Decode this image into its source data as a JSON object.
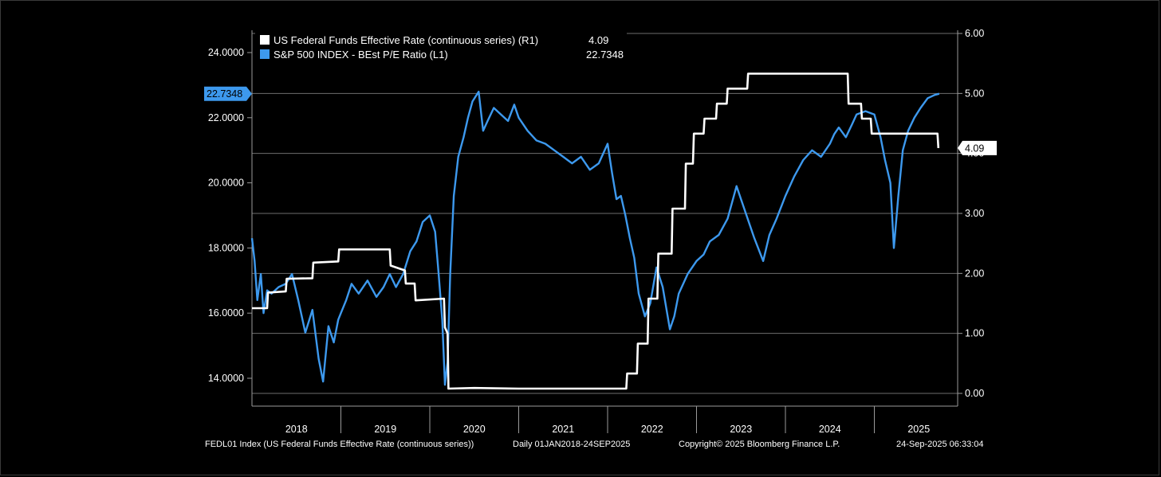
{
  "chart_data": {
    "type": "line",
    "x_range": [
      "2018-01-01",
      "2025-09-24"
    ],
    "x_ticks": [
      "2018",
      "2019",
      "2020",
      "2021",
      "2022",
      "2023",
      "2024",
      "2025"
    ],
    "left_axis": {
      "ticks": [
        "14.0000",
        "16.0000",
        "18.0000",
        "20.0000",
        "22.0000",
        "24.0000"
      ],
      "ylim": [
        13.5,
        25.0
      ]
    },
    "right_axis": {
      "ticks": [
        "0.00",
        "1.00",
        "2.00",
        "3.00",
        "4.00",
        "5.00",
        "6.00"
      ],
      "ylim": [
        0,
        6
      ]
    },
    "grid": true,
    "legend_position": "top-left",
    "series": [
      {
        "name": "US Federal Funds Effective Rate (continuous series)  (R1)",
        "last_label": "4.09",
        "axis": "right",
        "color": "#ffffff",
        "x": [
          2018.0,
          2018.17,
          2018.18,
          2018.38,
          2018.39,
          2018.68,
          2018.69,
          2018.97,
          2018.98,
          2019.55,
          2019.56,
          2019.72,
          2019.73,
          2019.83,
          2019.84,
          2020.16,
          2020.17,
          2020.2,
          2020.21,
          2020.5,
          2021.0,
          2021.5,
          2022.0,
          2022.21,
          2022.22,
          2022.33,
          2022.34,
          2022.45,
          2022.46,
          2022.56,
          2022.57,
          2022.72,
          2022.73,
          2022.87,
          2022.88,
          2022.96,
          2022.97,
          2023.08,
          2023.09,
          2023.22,
          2023.23,
          2023.34,
          2023.35,
          2023.57,
          2023.58,
          2024.0,
          2024.7,
          2024.71,
          2024.85,
          2024.86,
          2024.96,
          2024.97,
          2025.5,
          2025.71,
          2025.72
        ],
        "values": [
          1.42,
          1.42,
          1.68,
          1.7,
          1.91,
          1.92,
          2.18,
          2.2,
          2.4,
          2.4,
          2.13,
          2.05,
          1.83,
          1.83,
          1.55,
          1.58,
          1.1,
          1.0,
          0.08,
          0.09,
          0.08,
          0.08,
          0.08,
          0.08,
          0.33,
          0.33,
          0.83,
          0.83,
          1.58,
          1.58,
          2.33,
          2.33,
          3.08,
          3.08,
          3.83,
          3.83,
          4.33,
          4.33,
          4.58,
          4.58,
          4.83,
          4.83,
          5.08,
          5.08,
          5.33,
          5.33,
          5.33,
          4.83,
          4.83,
          4.58,
          4.58,
          4.33,
          4.33,
          4.33,
          4.09
        ]
      },
      {
        "name": "S&P 500 INDEX - BEst P/E Ratio (L1)",
        "last_label": "22.7348",
        "axis": "left",
        "color": "#3d99ee",
        "x": [
          2018.0,
          2018.03,
          2018.06,
          2018.1,
          2018.13,
          2018.17,
          2018.22,
          2018.3,
          2018.38,
          2018.45,
          2018.52,
          2018.6,
          2018.68,
          2018.75,
          2018.8,
          2018.86,
          2018.92,
          2018.97,
          2019.0,
          2019.06,
          2019.12,
          2019.2,
          2019.3,
          2019.4,
          2019.48,
          2019.55,
          2019.62,
          2019.7,
          2019.78,
          2019.85,
          2019.92,
          2020.0,
          2020.06,
          2020.1,
          2020.14,
          2020.17,
          2020.2,
          2020.23,
          2020.27,
          2020.32,
          2020.38,
          2020.43,
          2020.48,
          2020.55,
          2020.6,
          2020.65,
          2020.72,
          2020.8,
          2020.88,
          2020.95,
          2021.0,
          2021.1,
          2021.2,
          2021.3,
          2021.4,
          2021.5,
          2021.6,
          2021.7,
          2021.8,
          2021.9,
          2022.0,
          2022.05,
          2022.1,
          2022.15,
          2022.2,
          2022.25,
          2022.3,
          2022.35,
          2022.42,
          2022.48,
          2022.55,
          2022.62,
          2022.7,
          2022.75,
          2022.8,
          2022.9,
          2023.0,
          2023.08,
          2023.15,
          2023.25,
          2023.35,
          2023.45,
          2023.55,
          2023.65,
          2023.75,
          2023.82,
          2023.9,
          2024.0,
          2024.1,
          2024.2,
          2024.3,
          2024.4,
          2024.5,
          2024.55,
          2024.6,
          2024.68,
          2024.75,
          2024.8,
          2024.9,
          2025.0,
          2025.07,
          2025.12,
          2025.18,
          2025.22,
          2025.27,
          2025.32,
          2025.38,
          2025.45,
          2025.52,
          2025.6,
          2025.68,
          2025.73
        ],
        "values": [
          18.3,
          17.6,
          16.4,
          17.2,
          16.0,
          16.7,
          16.6,
          16.8,
          16.9,
          17.2,
          16.4,
          15.4,
          16.1,
          14.6,
          13.9,
          15.6,
          15.1,
          15.8,
          16.0,
          16.4,
          16.9,
          16.6,
          17.0,
          16.5,
          16.8,
          17.2,
          16.8,
          17.2,
          17.9,
          18.2,
          18.8,
          19.0,
          18.5,
          17.2,
          15.8,
          13.8,
          14.5,
          17.2,
          19.6,
          20.8,
          21.4,
          22.0,
          22.5,
          22.8,
          21.6,
          21.9,
          22.3,
          22.1,
          21.9,
          22.4,
          22.0,
          21.6,
          21.3,
          21.2,
          21.0,
          20.8,
          20.6,
          20.8,
          20.4,
          20.6,
          21.2,
          20.3,
          19.5,
          19.6,
          19.0,
          18.3,
          17.7,
          16.6,
          15.9,
          16.3,
          17.4,
          16.8,
          15.5,
          15.9,
          16.6,
          17.2,
          17.6,
          17.8,
          18.2,
          18.4,
          18.9,
          19.9,
          19.1,
          18.3,
          17.6,
          18.4,
          18.9,
          19.6,
          20.2,
          20.7,
          21.0,
          20.8,
          21.2,
          21.5,
          21.7,
          21.4,
          21.8,
          22.1,
          22.2,
          22.1,
          21.4,
          20.7,
          20.0,
          18.0,
          19.6,
          21.0,
          21.6,
          22.0,
          22.3,
          22.6,
          22.7,
          22.7348
        ]
      }
    ]
  },
  "legend": {
    "rows": [
      {
        "label": "US Federal Funds Effective Rate (continuous series)  (R1)",
        "value": "4.09"
      },
      {
        "label": "S&P 500 INDEX - BEst P/E Ratio (L1)",
        "value": "22.7348"
      }
    ]
  },
  "badges": {
    "left": "22.7348",
    "right": "4.09"
  },
  "footer": {
    "source": "FEDL01 Index (US Federal Funds Effective Rate (continuous series))",
    "period": "Daily 01JAN2018-24SEP2025",
    "copyright": "Copyright© 2025 Bloomberg Finance L.P.",
    "timestamp": "24-Sep-2025 06:33:04"
  }
}
